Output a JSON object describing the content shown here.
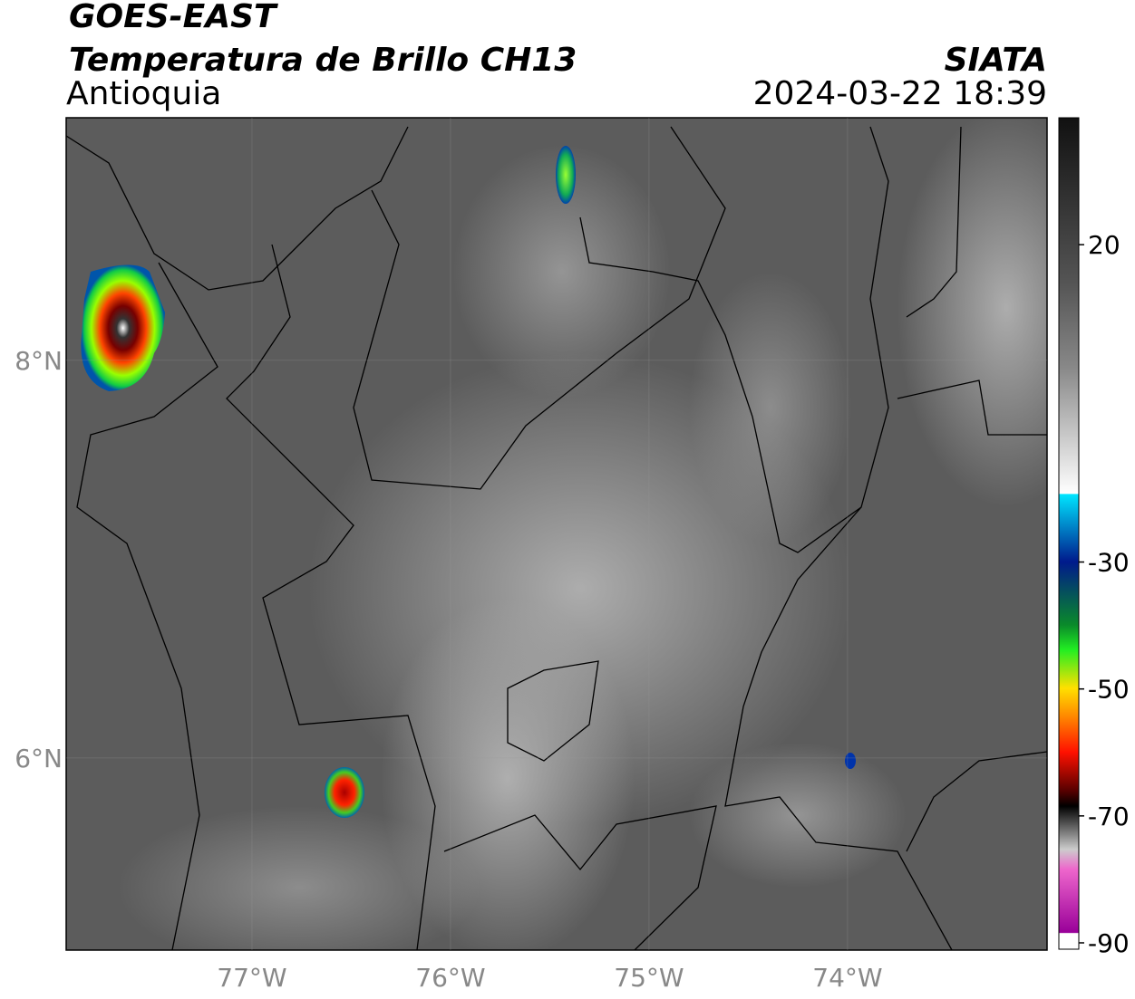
{
  "header": {
    "title": "GOES-EAST",
    "subtitle": "Temperatura de Brillo CH13",
    "region": "Antioquia",
    "source": "SIATA",
    "datetime": "2024-03-22 18:39"
  },
  "map": {
    "xlim": [
      -77.936,
      -72.995
    ],
    "ylim": [
      5.034,
      9.22
    ],
    "xticks": [
      {
        "value": -77,
        "label": "77°W"
      },
      {
        "value": -76,
        "label": "76°W"
      },
      {
        "value": -75,
        "label": "75°W"
      },
      {
        "value": -74,
        "label": "74°W"
      }
    ],
    "yticks": [
      {
        "value": 8,
        "label": "8°N"
      },
      {
        "value": 6,
        "label": "6°N"
      }
    ]
  },
  "colorbar": {
    "lim": [
      -91,
      40
    ],
    "ticks": [
      20,
      -30,
      -50,
      -70,
      -90
    ]
  }
}
